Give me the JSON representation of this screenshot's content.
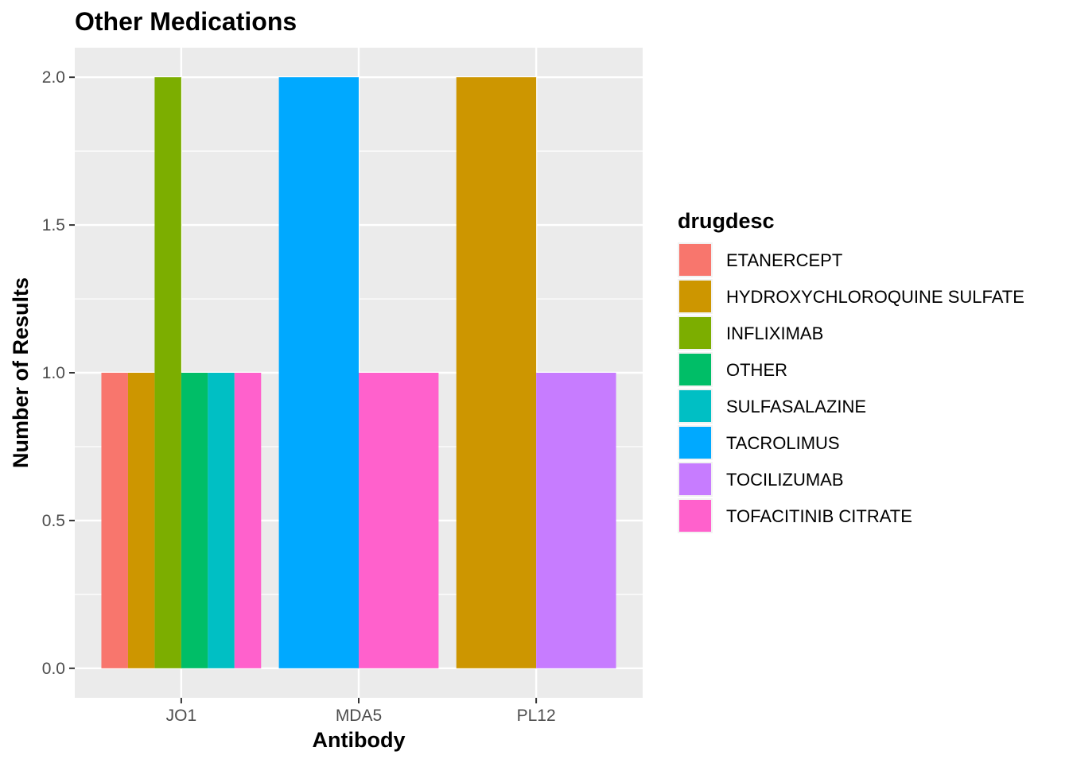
{
  "chart_data": {
    "type": "bar",
    "title": "Other Medications",
    "xlabel": "Antibody",
    "ylabel": "Number of Results",
    "ylim": [
      -0.1,
      2.1
    ],
    "yticks": [
      0.0,
      0.5,
      1.0,
      1.5,
      2.0
    ],
    "ytick_labels": [
      "0.0",
      "0.5",
      "1.0",
      "1.5",
      "2.0"
    ],
    "categories": [
      "JO1",
      "MDA5",
      "PL12"
    ],
    "grid": true,
    "legend_position": "right",
    "legend_title": "drugdesc",
    "series": [
      {
        "name": "ETANERCEPT",
        "color": "#F8766D"
      },
      {
        "name": "HYDROXYCHLOROQUINE SULFATE",
        "color": "#CD9600"
      },
      {
        "name": "INFLIXIMAB",
        "color": "#7CAE00"
      },
      {
        "name": "OTHER",
        "color": "#00BE67"
      },
      {
        "name": "SULFASALAZINE",
        "color": "#00BFC4"
      },
      {
        "name": "TACROLIMUS",
        "color": "#00A9FF"
      },
      {
        "name": "TOCILIZUMAB",
        "color": "#C77CFF"
      },
      {
        "name": "TOFACITINIB CITRATE",
        "color": "#FF61CC"
      }
    ],
    "bars": [
      {
        "category": "JO1",
        "series": "ETANERCEPT",
        "value": 1
      },
      {
        "category": "JO1",
        "series": "HYDROXYCHLOROQUINE SULFATE",
        "value": 1
      },
      {
        "category": "JO1",
        "series": "INFLIXIMAB",
        "value": 2
      },
      {
        "category": "JO1",
        "series": "OTHER",
        "value": 1
      },
      {
        "category": "JO1",
        "series": "SULFASALAZINE",
        "value": 1
      },
      {
        "category": "JO1",
        "series": "TOFACITINIB CITRATE",
        "value": 1
      },
      {
        "category": "MDA5",
        "series": "TACROLIMUS",
        "value": 2
      },
      {
        "category": "MDA5",
        "series": "TOFACITINIB CITRATE",
        "value": 1
      },
      {
        "category": "PL12",
        "series": "HYDROXYCHLOROQUINE SULFATE",
        "value": 2
      },
      {
        "category": "PL12",
        "series": "TOCILIZUMAB",
        "value": 1
      }
    ]
  }
}
